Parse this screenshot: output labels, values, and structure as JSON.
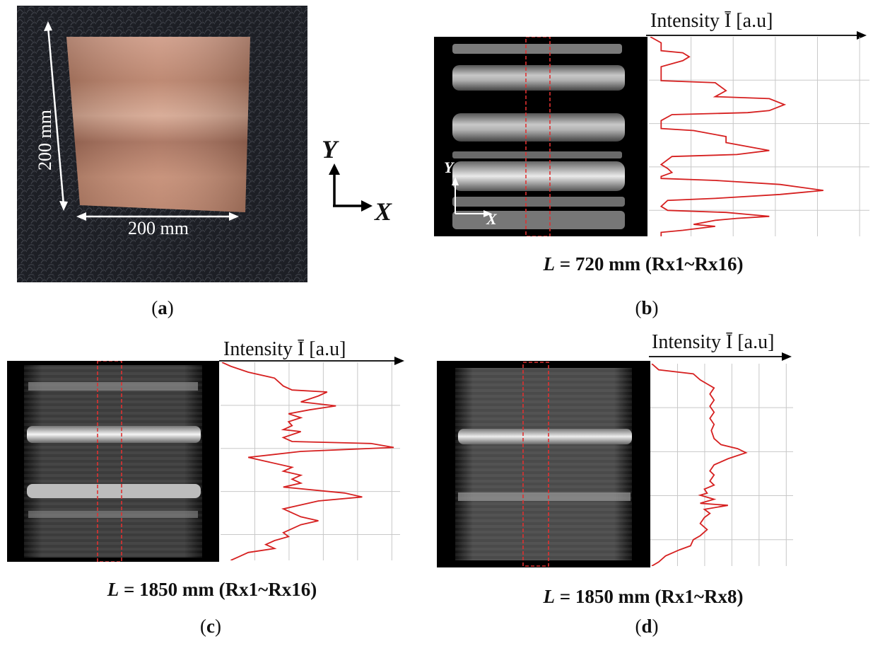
{
  "panel_a": {
    "label": "a",
    "dim_vertical": "200 mm",
    "dim_horizontal": "200 mm",
    "axis_y": "Y",
    "axis_x": "X"
  },
  "panel_b": {
    "label": "b",
    "caption_var": "L",
    "caption_rest": " = 720 mm (Rx1~Rx16)",
    "plot_title": "Intensity Ī [a.u]",
    "inset_axis_y": "Y",
    "inset_axis_x": "X"
  },
  "panel_c": {
    "label": "c",
    "caption_var": "L",
    "caption_rest": " = 1850 mm (Rx1~Rx16)",
    "plot_title": "Intensity Ī [a.u]"
  },
  "panel_d": {
    "label": "d",
    "caption_var": "L",
    "caption_rest": " = 1850 mm (Rx1~Rx8)",
    "plot_title": "Intensity Ī [a.u]"
  },
  "colors": {
    "profile": "#d62020",
    "grid": "#c8c8c8",
    "box": "#e03030",
    "copper": "#c48a6e"
  },
  "chart_data": [
    {
      "type": "line",
      "panel": "b",
      "title": "Intensity Ī [a.u]",
      "xlim": [
        0,
        1
      ],
      "ylim": [
        0,
        1
      ],
      "x": [
        0.0,
        0.05,
        0.05,
        0.15,
        0.18,
        0.15,
        0.05,
        0.05,
        0.3,
        0.35,
        0.3,
        0.55,
        0.62,
        0.55,
        0.45,
        0.1,
        0.05,
        0.05,
        0.2,
        0.35,
        0.35,
        0.55,
        0.4,
        0.1,
        0.05,
        0.08,
        0.1,
        0.05,
        0.05,
        0.3,
        0.6,
        0.8,
        0.6,
        0.3,
        0.08,
        0.05,
        0.08,
        0.35,
        0.45,
        0.55,
        0.4,
        0.3,
        0.2,
        0.3,
        0.15,
        0.05,
        0.05
      ],
      "y": [
        1.0,
        0.97,
        0.93,
        0.92,
        0.9,
        0.88,
        0.85,
        0.78,
        0.77,
        0.73,
        0.7,
        0.69,
        0.66,
        0.63,
        0.62,
        0.61,
        0.58,
        0.54,
        0.53,
        0.5,
        0.47,
        0.43,
        0.41,
        0.4,
        0.36,
        0.34,
        0.32,
        0.3,
        0.29,
        0.28,
        0.26,
        0.23,
        0.21,
        0.19,
        0.18,
        0.15,
        0.13,
        0.12,
        0.11,
        0.1,
        0.09,
        0.08,
        0.06,
        0.05,
        0.03,
        0.02,
        0.0
      ]
    },
    {
      "type": "line",
      "panel": "c",
      "title": "Intensity Ī [a.u]",
      "xlim": [
        0,
        1
      ],
      "ylim": [
        0,
        1
      ],
      "x": [
        0.0,
        0.05,
        0.15,
        0.3,
        0.35,
        0.4,
        0.6,
        0.55,
        0.45,
        0.65,
        0.5,
        0.38,
        0.45,
        0.38,
        0.4,
        0.35,
        0.45,
        0.35,
        0.4,
        0.85,
        0.98,
        0.45,
        0.15,
        0.25,
        0.4,
        0.35,
        0.45,
        0.4,
        0.45,
        0.35,
        0.7,
        0.8,
        0.55,
        0.45,
        0.35,
        0.4,
        0.45,
        0.55,
        0.45,
        0.4,
        0.35,
        0.38,
        0.3,
        0.25,
        0.3,
        0.15,
        0.1,
        0.05
      ],
      "y": [
        1.0,
        0.98,
        0.95,
        0.92,
        0.88,
        0.86,
        0.85,
        0.83,
        0.8,
        0.78,
        0.76,
        0.74,
        0.72,
        0.7,
        0.68,
        0.66,
        0.65,
        0.62,
        0.6,
        0.59,
        0.57,
        0.55,
        0.52,
        0.5,
        0.47,
        0.45,
        0.43,
        0.41,
        0.39,
        0.37,
        0.34,
        0.32,
        0.3,
        0.28,
        0.26,
        0.24,
        0.22,
        0.2,
        0.18,
        0.16,
        0.14,
        0.12,
        0.1,
        0.08,
        0.06,
        0.04,
        0.02,
        0.0
      ]
    },
    {
      "type": "line",
      "panel": "d",
      "title": "Intensity Ī [a.u]",
      "xlim": [
        0,
        1
      ],
      "ylim": [
        0,
        1
      ],
      "x": [
        0.0,
        0.05,
        0.3,
        0.35,
        0.4,
        0.45,
        0.42,
        0.45,
        0.42,
        0.45,
        0.42,
        0.45,
        0.43,
        0.45,
        0.5,
        0.62,
        0.68,
        0.55,
        0.45,
        0.42,
        0.45,
        0.42,
        0.45,
        0.38,
        0.4,
        0.35,
        0.45,
        0.35,
        0.55,
        0.38,
        0.42,
        0.38,
        0.35,
        0.4,
        0.35,
        0.3,
        0.28,
        0.2,
        0.1,
        0.05,
        0.0
      ],
      "y": [
        1.0,
        0.97,
        0.95,
        0.92,
        0.9,
        0.88,
        0.85,
        0.82,
        0.79,
        0.76,
        0.73,
        0.7,
        0.67,
        0.63,
        0.6,
        0.58,
        0.56,
        0.53,
        0.5,
        0.47,
        0.45,
        0.42,
        0.4,
        0.38,
        0.36,
        0.35,
        0.33,
        0.31,
        0.3,
        0.28,
        0.26,
        0.24,
        0.21,
        0.18,
        0.15,
        0.13,
        0.1,
        0.08,
        0.05,
        0.02,
        0.0
      ]
    }
  ]
}
